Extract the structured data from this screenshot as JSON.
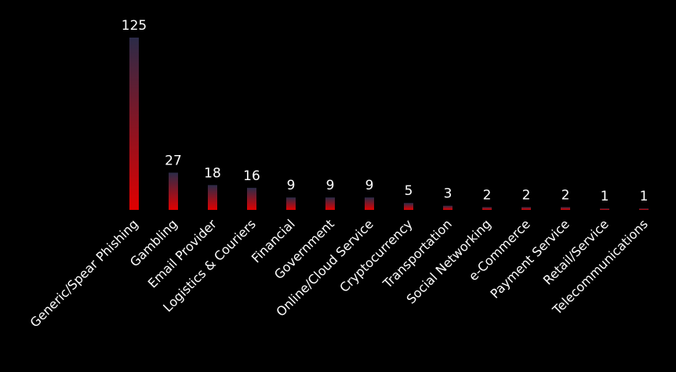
{
  "chart_data": {
    "type": "bar",
    "categories": [
      "Generic/Spear Phishing",
      "Gambling",
      "Email Provider",
      "Logistics & Couriers",
      "Financial",
      "Government",
      "Online/Cloud Service",
      "Cryptocurrency",
      "Transportation",
      "Social Networking",
      "e-Commerce",
      "Payment Service",
      "Retail/Service",
      "Telecommunications"
    ],
    "values": [
      125,
      27,
      18,
      16,
      9,
      9,
      9,
      5,
      3,
      2,
      2,
      2,
      1,
      1
    ],
    "color": "#e00000"
  }
}
